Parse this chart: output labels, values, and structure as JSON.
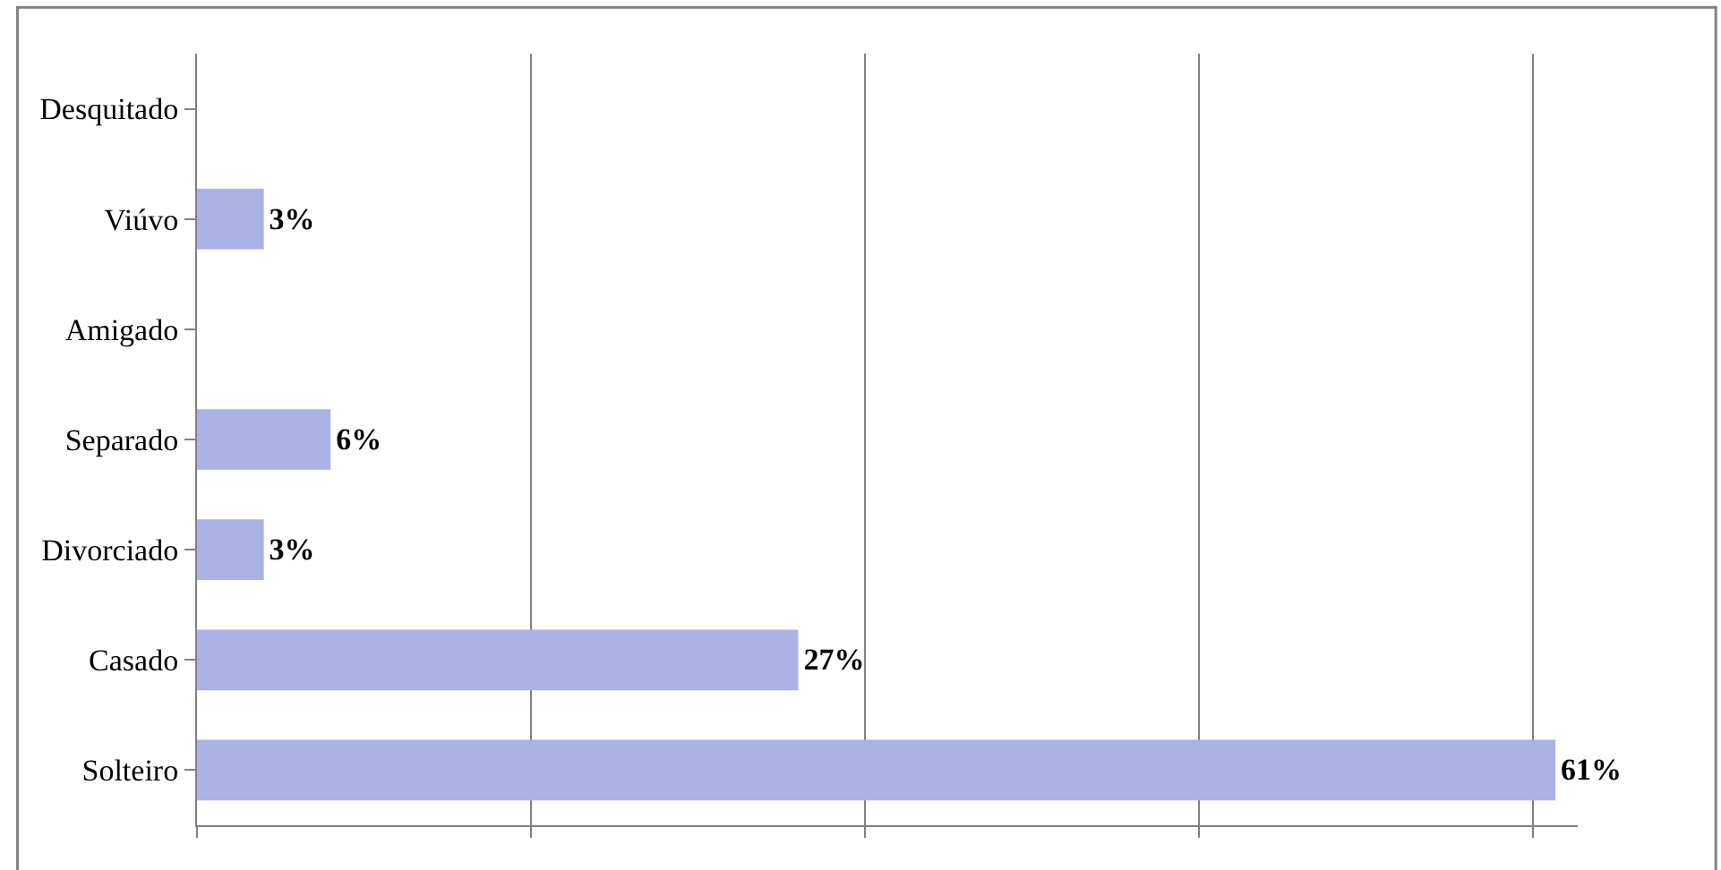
{
  "chart_data": {
    "type": "bar",
    "orientation": "horizontal",
    "categories": [
      "Desquitado",
      "Viúvo",
      "Amigado",
      "Separado",
      "Divorciado",
      "Casado",
      "Solteiro"
    ],
    "values": [
      0,
      3,
      0,
      6,
      3,
      27,
      61
    ],
    "value_labels": [
      null,
      "3%",
      null,
      "6%",
      "3%",
      "27%",
      "61%"
    ],
    "color": "#aab2e6",
    "xlim": [
      0,
      62
    ],
    "xticks": [
      {
        "value": 0,
        "label": null
      },
      {
        "value": 15,
        "label": null
      },
      {
        "value": 30,
        "label": null
      },
      {
        "value": 45,
        "label": null
      },
      {
        "value": 60,
        "label": null
      }
    ],
    "grid": "x",
    "tick_labels": "y",
    "legend": false
  }
}
